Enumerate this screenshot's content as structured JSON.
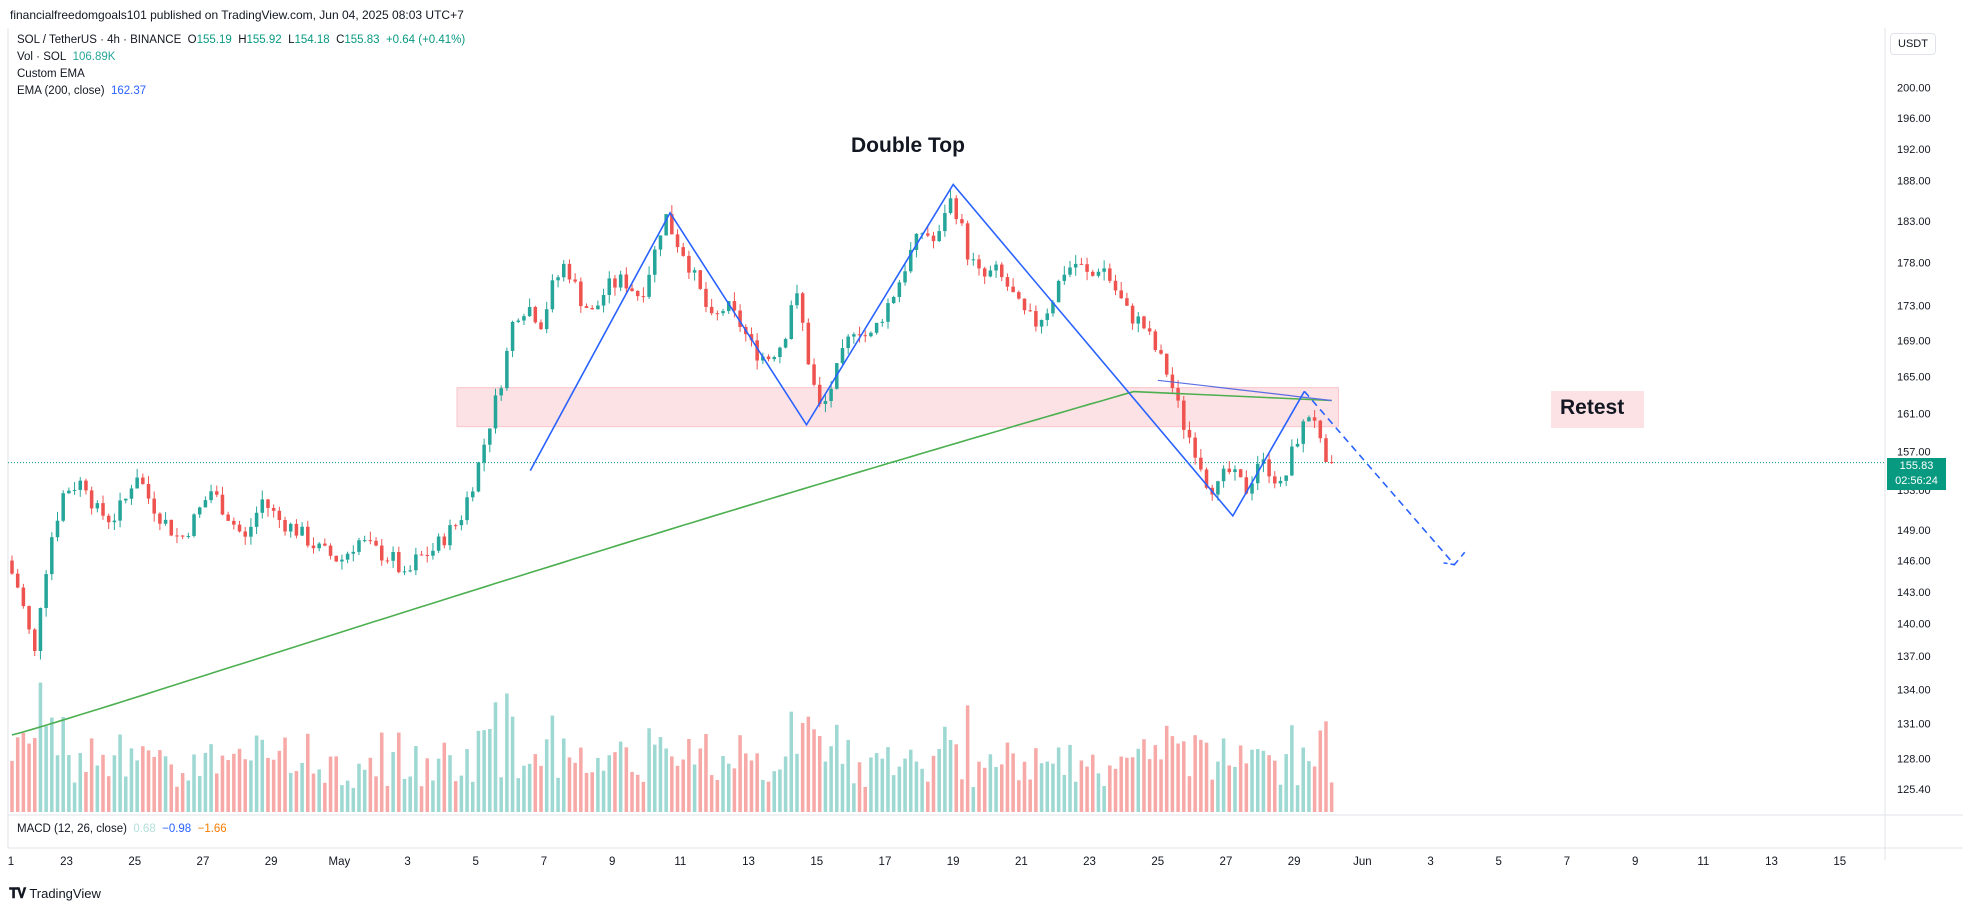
{
  "header": {
    "publisher": "financialfreedomgoals101 published on TradingView.com, Jun 04, 2025 08:03 UTC+7"
  },
  "legend": {
    "symbol": "SOL / TetherUS · 4h · BINANCE",
    "o_label": "O",
    "o_value": "155.19",
    "h_label": "H",
    "h_value": "155.92",
    "l_label": "L",
    "l_value": "154.18",
    "c_label": "C",
    "c_value": "155.83",
    "change": "+0.64 (+0.41%)",
    "vol_label": "Vol · SOL",
    "vol_value": "106.89K",
    "custom_ema": "Custom EMA",
    "ema_label": "EMA (200, close)",
    "ema_value": "162.37",
    "macd_label": "MACD (12, 26, close)",
    "macd_hist": "0.68",
    "macd_line": "−0.98",
    "macd_signal": "−1.66"
  },
  "currency_button": "USDT",
  "last_price": {
    "price": "155.83",
    "countdown": "02:56:24"
  },
  "annotations": {
    "double_top": "Double Top",
    "retest": "Retest"
  },
  "footer": {
    "brand": "TradingView"
  },
  "colors": {
    "up": "#26a69a",
    "down": "#ef5350",
    "ema200": "#4caf50",
    "custom_ema": "#5b6ee1",
    "pattern": "#2962ff",
    "zone": "#fde2e5",
    "volume_up": "#9ed8d2",
    "volume_down": "#f7a9a7"
  },
  "chart_data": {
    "type": "candlestick",
    "title": "SOL / TetherUS · 4h · BINANCE",
    "y_ticks": [
      "200.00",
      "196.00",
      "192.00",
      "188.00",
      "183.00",
      "178.00",
      "173.00",
      "169.00",
      "165.00",
      "161.00",
      "157.00",
      "153.00",
      "149.00",
      "146.00",
      "143.00",
      "140.00",
      "137.00",
      "134.00",
      "131.00",
      "128.00",
      "125.40"
    ],
    "x_ticks": [
      "1",
      "23",
      "25",
      "27",
      "29",
      "May",
      "3",
      "5",
      "7",
      "9",
      "11",
      "13",
      "15",
      "17",
      "19",
      "21",
      "23",
      "25",
      "27",
      "29",
      "Jun",
      "3",
      "5",
      "7",
      "9",
      "11",
      "13",
      "15"
    ],
    "y_scale": "log",
    "ylim": [
      124.5,
      201
    ],
    "x_days": [
      0,
      45
    ],
    "resistance_zone": [
      159.6,
      163.8
    ],
    "last_price": 155.83,
    "candle_key_points": [
      [
        0,
        146
      ],
      [
        0.4,
        143
      ],
      [
        0.6,
        140
      ],
      [
        0.85,
        137
      ],
      [
        1.0,
        142
      ],
      [
        1.3,
        148
      ],
      [
        1.7,
        153
      ],
      [
        2.3,
        154
      ],
      [
        2.6,
        151
      ],
      [
        3.1,
        150
      ],
      [
        3.5,
        152
      ],
      [
        3.8,
        155
      ],
      [
        4.2,
        152
      ],
      [
        4.6,
        150
      ],
      [
        5.1,
        148
      ],
      [
        5.5,
        150
      ],
      [
        6.0,
        153
      ],
      [
        6.4,
        151
      ],
      [
        7.0,
        148
      ],
      [
        7.5,
        152
      ],
      [
        8.0,
        150
      ],
      [
        8.5,
        149
      ],
      [
        9.2,
        147
      ],
      [
        9.8,
        146
      ],
      [
        10.3,
        148
      ],
      [
        10.8,
        147
      ],
      [
        11.4,
        146
      ],
      [
        11.7,
        144
      ],
      [
        12.0,
        146
      ],
      [
        12.5,
        147
      ],
      [
        13.3,
        150
      ],
      [
        13.8,
        155
      ],
      [
        14.1,
        159
      ],
      [
        14.4,
        163
      ],
      [
        14.6,
        166
      ],
      [
        14.9,
        172
      ],
      [
        15.3,
        173
      ],
      [
        15.7,
        171
      ],
      [
        16.0,
        175
      ],
      [
        16.4,
        178
      ],
      [
        16.8,
        174
      ],
      [
        17.2,
        172
      ],
      [
        17.6,
        175
      ],
      [
        18.1,
        176
      ],
      [
        18.6,
        174
      ],
      [
        19.0,
        179
      ],
      [
        19.3,
        184
      ],
      [
        19.6,
        181
      ],
      [
        19.9,
        179
      ],
      [
        20.3,
        175
      ],
      [
        20.7,
        171
      ],
      [
        21.1,
        173
      ],
      [
        21.5,
        171
      ],
      [
        21.9,
        168
      ],
      [
        22.3,
        167
      ],
      [
        22.8,
        169
      ],
      [
        23.1,
        175
      ],
      [
        23.3,
        172
      ],
      [
        23.6,
        165
      ],
      [
        23.9,
        161
      ],
      [
        24.2,
        164
      ],
      [
        24.6,
        168
      ],
      [
        24.9,
        171
      ],
      [
        25.3,
        169
      ],
      [
        25.7,
        172
      ],
      [
        26.1,
        175
      ],
      [
        26.5,
        179
      ],
      [
        26.9,
        182
      ],
      [
        27.3,
        180
      ],
      [
        27.6,
        186
      ],
      [
        27.9,
        184
      ],
      [
        28.2,
        179
      ],
      [
        28.6,
        176
      ],
      [
        29.0,
        177
      ],
      [
        29.4,
        175
      ],
      [
        29.8,
        172
      ],
      [
        30.2,
        171
      ],
      [
        30.6,
        173
      ],
      [
        31.0,
        177
      ],
      [
        31.4,
        178
      ],
      [
        31.8,
        176
      ],
      [
        32.1,
        178
      ],
      [
        32.5,
        175
      ],
      [
        32.9,
        172
      ],
      [
        33.3,
        171
      ],
      [
        33.7,
        168
      ],
      [
        34.1,
        165
      ],
      [
        34.5,
        160
      ],
      [
        34.9,
        157
      ],
      [
        35.2,
        154
      ],
      [
        35.5,
        153
      ],
      [
        35.8,
        155
      ],
      [
        36.1,
        154
      ],
      [
        36.4,
        153
      ],
      [
        36.7,
        156
      ],
      [
        37.1,
        155
      ],
      [
        37.4,
        153
      ],
      [
        37.8,
        158
      ],
      [
        38.1,
        160
      ],
      [
        38.3,
        162
      ],
      [
        38.5,
        158
      ],
      [
        38.7,
        155
      ]
    ],
    "pattern_lines": {
      "double_top": [
        [
          15.2,
          155
        ],
        [
          19.3,
          184
        ],
        [
          23.3,
          159.8
        ],
        [
          27.6,
          187.5
        ],
        [
          35.8,
          150.4
        ],
        [
          37.9,
          163.4
        ]
      ],
      "projection": [
        [
          37.9,
          163.4
        ],
        [
          42.3,
          145.6
        ],
        [
          42.6,
          146.8
        ]
      ]
    },
    "ema200_start": 130,
    "ema200_end": 162.4
  }
}
